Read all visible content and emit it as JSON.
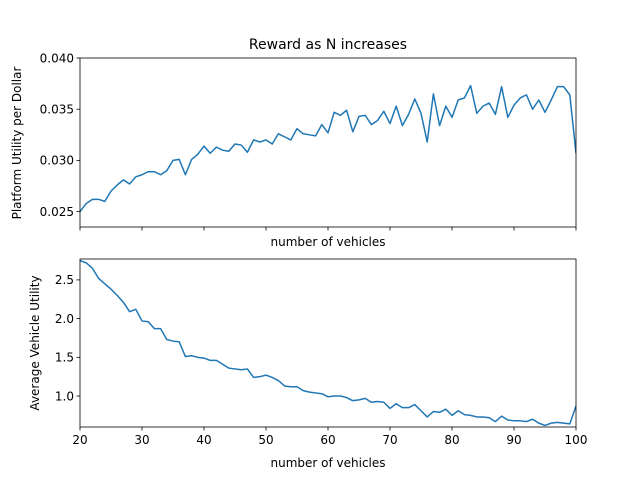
{
  "chart_data": [
    {
      "type": "line",
      "title": "Reward as N increases",
      "xlabel": "number of vehicles",
      "ylabel": "Platform Utility per Dollar",
      "xlim": [
        20,
        100
      ],
      "ylim": [
        0.0235,
        0.04
      ],
      "yticks": [
        "0.025",
        "0.030",
        "0.035",
        "0.040"
      ],
      "yticks_values": [
        0.025,
        0.03,
        0.035,
        0.04
      ],
      "xticks_values": [
        20,
        30,
        40,
        50,
        60,
        70,
        80,
        90,
        100
      ],
      "show_xtick_labels": false,
      "grid": false,
      "line_color": "#1f77b4",
      "series": [
        {
          "x": [
            20,
            21,
            22,
            23,
            24,
            25,
            26,
            27,
            28,
            29,
            30,
            31,
            32,
            33,
            34,
            35,
            36,
            37,
            38,
            39,
            40,
            41,
            42,
            43,
            44,
            45,
            46,
            47,
            48,
            49,
            50,
            51,
            52,
            53,
            54,
            55,
            56,
            57,
            58,
            59,
            60,
            61,
            62,
            63,
            64,
            65,
            66,
            67,
            68,
            69,
            70,
            71,
            72,
            73,
            74,
            75,
            76,
            77,
            78,
            79,
            80,
            81,
            82,
            83,
            84,
            85,
            86,
            87,
            88,
            89,
            90,
            91,
            92,
            93,
            94,
            95,
            96,
            97,
            98,
            99,
            100
          ],
          "values": [
            0.025,
            0.0258,
            0.0262,
            0.0262,
            0.026,
            0.027,
            0.0276,
            0.0281,
            0.0277,
            0.0284,
            0.0286,
            0.0289,
            0.0289,
            0.0286,
            0.029,
            0.03,
            0.0301,
            0.0286,
            0.0301,
            0.0306,
            0.0314,
            0.0307,
            0.0313,
            0.031,
            0.0309,
            0.0316,
            0.0315,
            0.0308,
            0.032,
            0.0318,
            0.032,
            0.0316,
            0.0326,
            0.0323,
            0.032,
            0.0331,
            0.0326,
            0.0325,
            0.0324,
            0.0335,
            0.0327,
            0.0347,
            0.0344,
            0.0349,
            0.0328,
            0.0343,
            0.0344,
            0.0335,
            0.0339,
            0.0348,
            0.0336,
            0.0353,
            0.0334,
            0.0345,
            0.036,
            0.0346,
            0.0318,
            0.0365,
            0.0334,
            0.0353,
            0.0342,
            0.0359,
            0.0361,
            0.0373,
            0.0346,
            0.0353,
            0.0356,
            0.0345,
            0.0372,
            0.0342,
            0.0354,
            0.0361,
            0.0364,
            0.035,
            0.0359,
            0.0347,
            0.0359,
            0.0372,
            0.0372,
            0.0364,
            0.0307
          ]
        }
      ]
    },
    {
      "type": "line",
      "title": "",
      "xlabel": "number of vehicles",
      "ylabel": "Average Vehicle Utility",
      "xlim": [
        20,
        100
      ],
      "ylim": [
        0.6,
        2.77
      ],
      "yticks": [
        "1.0",
        "1.5",
        "2.0",
        "2.5"
      ],
      "yticks_values": [
        1.0,
        1.5,
        2.0,
        2.5
      ],
      "xticks": [
        "20",
        "30",
        "40",
        "50",
        "60",
        "70",
        "80",
        "90",
        "100"
      ],
      "xticks_values": [
        20,
        30,
        40,
        50,
        60,
        70,
        80,
        90,
        100
      ],
      "show_xtick_labels": true,
      "grid": false,
      "line_color": "#1f77b4",
      "series": [
        {
          "x": [
            20,
            21,
            22,
            23,
            24,
            25,
            26,
            27,
            28,
            29,
            30,
            31,
            32,
            33,
            34,
            35,
            36,
            37,
            38,
            39,
            40,
            41,
            42,
            43,
            44,
            45,
            46,
            47,
            48,
            49,
            50,
            51,
            52,
            53,
            54,
            55,
            56,
            57,
            58,
            59,
            60,
            61,
            62,
            63,
            64,
            65,
            66,
            67,
            68,
            69,
            70,
            71,
            72,
            73,
            74,
            75,
            76,
            77,
            78,
            79,
            80,
            81,
            82,
            83,
            84,
            85,
            86,
            87,
            88,
            89,
            90,
            91,
            92,
            93,
            94,
            95,
            96,
            97,
            98,
            99,
            100
          ],
          "values": [
            2.75,
            2.72,
            2.65,
            2.52,
            2.45,
            2.38,
            2.3,
            2.21,
            2.09,
            2.12,
            1.97,
            1.96,
            1.87,
            1.87,
            1.73,
            1.71,
            1.7,
            1.51,
            1.52,
            1.5,
            1.49,
            1.46,
            1.46,
            1.41,
            1.36,
            1.35,
            1.34,
            1.35,
            1.24,
            1.25,
            1.27,
            1.24,
            1.2,
            1.13,
            1.12,
            1.12,
            1.07,
            1.05,
            1.04,
            1.03,
            0.99,
            1.0,
            1.0,
            0.98,
            0.94,
            0.95,
            0.97,
            0.92,
            0.93,
            0.92,
            0.84,
            0.9,
            0.85,
            0.85,
            0.89,
            0.81,
            0.73,
            0.8,
            0.79,
            0.83,
            0.75,
            0.81,
            0.76,
            0.75,
            0.73,
            0.73,
            0.72,
            0.67,
            0.74,
            0.69,
            0.68,
            0.68,
            0.67,
            0.7,
            0.65,
            0.62,
            0.65,
            0.66,
            0.65,
            0.64,
            0.87
          ]
        }
      ]
    }
  ]
}
